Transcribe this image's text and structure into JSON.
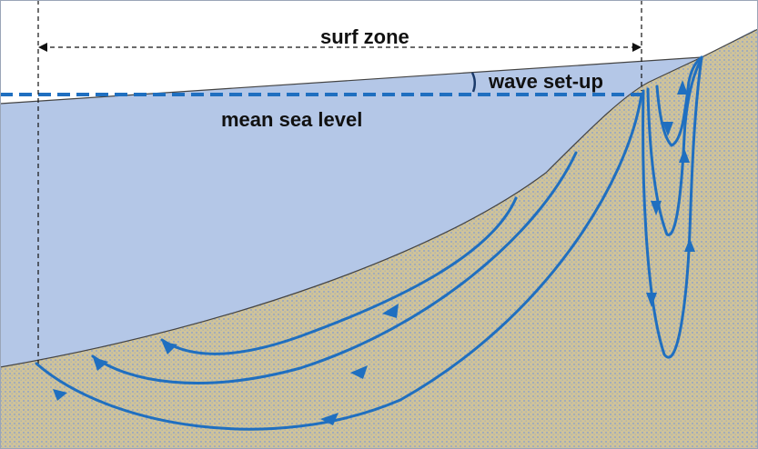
{
  "labels": {
    "surf_zone": "surf zone",
    "wave_setup": "wave set-up",
    "mean_sea_level": "mean sea level"
  },
  "colors": {
    "water": "#b4c7e7",
    "sand": "#cfc39a",
    "sand_dot": "#8fa3c9",
    "flow": "#1f6fc0",
    "msl_line": "#1f6fc0",
    "outline": "#444444"
  },
  "icons": {
    "flow_arrow": "arrow-head-icon"
  }
}
